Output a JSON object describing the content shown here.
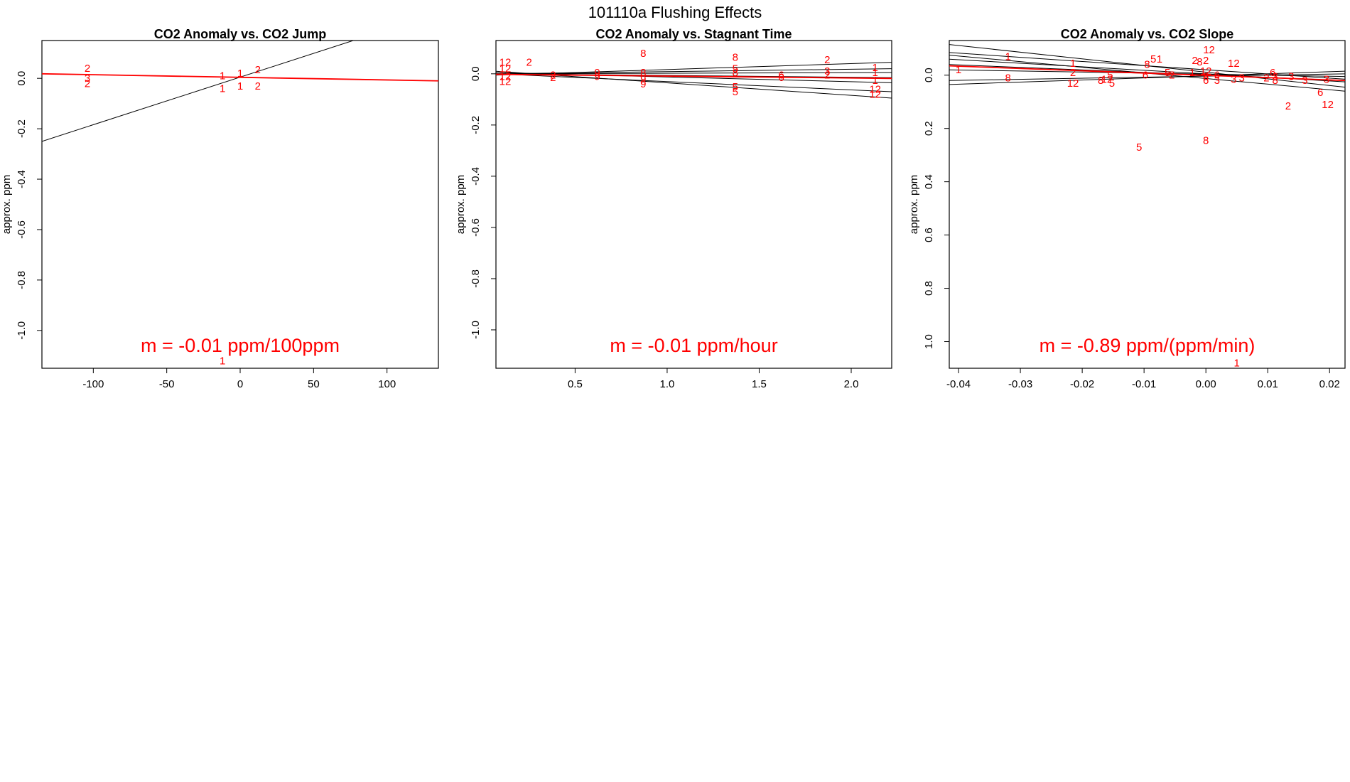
{
  "figure": {
    "title": "101110a   Flushing Effects",
    "colors": {
      "points": "#ff0000",
      "fit_line": "#ff0000",
      "group_lines": "#000000",
      "frame": "#000000"
    }
  },
  "chart_data": [
    {
      "type": "scatter",
      "title": "CO2 Anomaly vs. CO2 Jump",
      "xlabel": "",
      "ylabel": "approx. ppm",
      "xlim": [
        -135,
        135
      ],
      "ylim": [
        -1.15,
        0.15
      ],
      "xticks": [
        -100,
        -50,
        0,
        50,
        100
      ],
      "yticks": [
        0.0,
        -0.2,
        -0.4,
        -0.6,
        -0.8,
        -1.0
      ],
      "annotation": "m = -0.01 ppm/100ppm",
      "points": [
        {
          "x": -104,
          "y": 0.04,
          "label": "2"
        },
        {
          "x": -104,
          "y": 0.0,
          "label": "3"
        },
        {
          "x": -104,
          "y": -0.02,
          "label": "2"
        },
        {
          "x": -12,
          "y": 0.01,
          "label": "1"
        },
        {
          "x": -12,
          "y": -0.04,
          "label": "1"
        },
        {
          "x": 0,
          "y": 0.02,
          "label": "1"
        },
        {
          "x": 0,
          "y": -0.03,
          "label": "1"
        },
        {
          "x": 12,
          "y": 0.035,
          "label": "2"
        },
        {
          "x": 12,
          "y": -0.03,
          "label": "2"
        },
        {
          "x": -12,
          "y": -1.12,
          "label": "1"
        }
      ],
      "group_lines": [
        {
          "x": [
            -135,
            77
          ],
          "y": [
            -0.25,
            0.15
          ]
        }
      ],
      "fit_line": {
        "x": [
          -135,
          135
        ],
        "y": [
          0.018,
          -0.01
        ]
      }
    },
    {
      "type": "scatter",
      "title": "CO2 Anomaly vs. Stagnant Time",
      "xlabel": "",
      "ylabel": "approx. ppm",
      "xlim": [
        0.07,
        2.22
      ],
      "ylim": [
        -1.15,
        0.13
      ],
      "xticks": [
        0.5,
        1.0,
        1.5,
        2.0
      ],
      "yticks": [
        0.0,
        -0.2,
        -0.4,
        -0.6,
        -0.8,
        -1.0
      ],
      "annotation": "m = -0.01 ppm/hour",
      "points": [
        {
          "x": 0.12,
          "y": 0.045,
          "label": "12"
        },
        {
          "x": 0.12,
          "y": 0.02,
          "label": "12"
        },
        {
          "x": 0.12,
          "y": -0.01,
          "label": "12"
        },
        {
          "x": 0.12,
          "y": -0.03,
          "label": "12"
        },
        {
          "x": 0.25,
          "y": 0.045,
          "label": "2"
        },
        {
          "x": 0.38,
          "y": -0.005,
          "label": "2"
        },
        {
          "x": 0.38,
          "y": -0.015,
          "label": "2"
        },
        {
          "x": 0.62,
          "y": 0.005,
          "label": "9"
        },
        {
          "x": 0.62,
          "y": -0.01,
          "label": "9"
        },
        {
          "x": 0.87,
          "y": 0.08,
          "label": "8"
        },
        {
          "x": 0.87,
          "y": 0.005,
          "label": "8"
        },
        {
          "x": 0.87,
          "y": -0.02,
          "label": "9"
        },
        {
          "x": 0.87,
          "y": -0.04,
          "label": "9"
        },
        {
          "x": 1.37,
          "y": 0.065,
          "label": "8"
        },
        {
          "x": 1.37,
          "y": 0.02,
          "label": "5"
        },
        {
          "x": 1.37,
          "y": 0.005,
          "label": "8"
        },
        {
          "x": 1.37,
          "y": -0.05,
          "label": "5"
        },
        {
          "x": 1.37,
          "y": -0.07,
          "label": "5"
        },
        {
          "x": 1.62,
          "y": -0.005,
          "label": "6"
        },
        {
          "x": 1.62,
          "y": -0.015,
          "label": "6"
        },
        {
          "x": 1.87,
          "y": 0.055,
          "label": "2"
        },
        {
          "x": 1.87,
          "y": 0.01,
          "label": "3"
        },
        {
          "x": 1.87,
          "y": -0.005,
          "label": "2"
        },
        {
          "x": 2.13,
          "y": 0.025,
          "label": "1"
        },
        {
          "x": 2.13,
          "y": 0.005,
          "label": "1"
        },
        {
          "x": 2.13,
          "y": -0.025,
          "label": "1"
        },
        {
          "x": 2.13,
          "y": -0.06,
          "label": "12"
        },
        {
          "x": 2.13,
          "y": -0.08,
          "label": "12"
        }
      ],
      "group_lines": [
        {
          "x": [
            0.07,
            2.22
          ],
          "y": [
            -0.005,
            0.045
          ]
        },
        {
          "x": [
            0.07,
            2.22
          ],
          "y": [
            0.0,
            0.02
          ]
        },
        {
          "x": [
            0.07,
            2.22
          ],
          "y": [
            0.0,
            0.005
          ]
        },
        {
          "x": [
            0.07,
            2.22
          ],
          "y": [
            0.0,
            -0.015
          ]
        },
        {
          "x": [
            0.07,
            2.22
          ],
          "y": [
            0.005,
            -0.035
          ]
        },
        {
          "x": [
            0.07,
            2.22
          ],
          "y": [
            0.0,
            -0.07
          ]
        },
        {
          "x": [
            0.07,
            2.22
          ],
          "y": [
            0.01,
            -0.095
          ]
        }
      ],
      "fit_line": {
        "x": [
          0.07,
          2.22
        ],
        "y": [
          -0.002,
          -0.018
        ]
      }
    },
    {
      "type": "scatter",
      "title": "CO2 Anomaly vs. CO2 Slope",
      "xlabel": "",
      "ylabel": "approx. ppm",
      "xlim": [
        -0.0415,
        0.0225
      ],
      "ylim": [
        -1.1,
        0.13
      ],
      "xticks": [
        -0.04,
        -0.03,
        -0.02,
        -0.01,
        0.0,
        0.01,
        0.02
      ],
      "ytick_labels": [
        "0.0",
        "0.2",
        "0.4",
        "0.6",
        "0.8",
        "1.0"
      ],
      "yticks": [
        0.0,
        -0.2,
        -0.4,
        -0.6,
        -0.8,
        -1.0
      ],
      "annotation": "m = -0.89 ppm/(ppm/min)",
      "points": [
        {
          "x": -0.04,
          "y": 0.02,
          "label": "1"
        },
        {
          "x": -0.032,
          "y": 0.07,
          "label": "1"
        },
        {
          "x": -0.032,
          "y": -0.01,
          "label": "8"
        },
        {
          "x": -0.0215,
          "y": 0.045,
          "label": "1"
        },
        {
          "x": -0.0215,
          "y": 0.01,
          "label": "2"
        },
        {
          "x": -0.0215,
          "y": -0.03,
          "label": "12"
        },
        {
          "x": -0.017,
          "y": -0.02,
          "label": "8"
        },
        {
          "x": -0.016,
          "y": -0.015,
          "label": "12"
        },
        {
          "x": -0.0155,
          "y": 0.0,
          "label": "5"
        },
        {
          "x": -0.0152,
          "y": -0.03,
          "label": "5"
        },
        {
          "x": -0.0108,
          "y": -0.27,
          "label": "5"
        },
        {
          "x": -0.0095,
          "y": 0.04,
          "label": "8"
        },
        {
          "x": -0.0085,
          "y": 0.06,
          "label": "5"
        },
        {
          "x": -0.0075,
          "y": 0.06,
          "label": "1"
        },
        {
          "x": -0.0098,
          "y": 0.0,
          "label": "6"
        },
        {
          "x": -0.0062,
          "y": 0.01,
          "label": "5"
        },
        {
          "x": -0.0055,
          "y": 0.0,
          "label": "2"
        },
        {
          "x": -0.0022,
          "y": 0.01,
          "label": "1"
        },
        {
          "x": -0.0018,
          "y": 0.055,
          "label": "2"
        },
        {
          "x": -0.001,
          "y": 0.05,
          "label": "8"
        },
        {
          "x": 0.0,
          "y": 0.055,
          "label": "2"
        },
        {
          "x": 0.0005,
          "y": 0.095,
          "label": "12"
        },
        {
          "x": 0.0,
          "y": 0.015,
          "label": "12"
        },
        {
          "x": 0.0,
          "y": -0.005,
          "label": "8"
        },
        {
          "x": 0.0,
          "y": -0.02,
          "label": "6"
        },
        {
          "x": 0.0,
          "y": -0.245,
          "label": "8"
        },
        {
          "x": 0.0018,
          "y": 0.0,
          "label": "6"
        },
        {
          "x": 0.0018,
          "y": -0.02,
          "label": "3"
        },
        {
          "x": 0.0045,
          "y": -0.015,
          "label": "3"
        },
        {
          "x": 0.005,
          "y": -1.08,
          "label": "1"
        },
        {
          "x": 0.0058,
          "y": -0.01,
          "label": "3"
        },
        {
          "x": 0.0045,
          "y": 0.045,
          "label": "12"
        },
        {
          "x": 0.0098,
          "y": -0.01,
          "label": "2"
        },
        {
          "x": 0.0108,
          "y": 0.01,
          "label": "6"
        },
        {
          "x": 0.0112,
          "y": -0.005,
          "label": "3"
        },
        {
          "x": 0.0112,
          "y": -0.02,
          "label": "8"
        },
        {
          "x": 0.0133,
          "y": -0.115,
          "label": "2"
        },
        {
          "x": 0.0138,
          "y": -0.005,
          "label": "3"
        },
        {
          "x": 0.016,
          "y": -0.02,
          "label": "3"
        },
        {
          "x": 0.0185,
          "y": -0.065,
          "label": "6"
        },
        {
          "x": 0.0195,
          "y": -0.015,
          "label": "3"
        },
        {
          "x": 0.0197,
          "y": -0.11,
          "label": "12"
        }
      ],
      "group_lines": [
        {
          "x": [
            -0.0415,
            0.0225
          ],
          "y": [
            0.115,
            -0.045
          ]
        },
        {
          "x": [
            -0.0415,
            0.0225
          ],
          "y": [
            0.085,
            -0.015
          ]
        },
        {
          "x": [
            -0.0415,
            0.0225
          ],
          "y": [
            0.075,
            -0.06
          ]
        },
        {
          "x": [
            -0.0415,
            0.0225
          ],
          "y": [
            0.06,
            -0.025
          ]
        },
        {
          "x": [
            -0.0415,
            0.0225
          ],
          "y": [
            0.04,
            -0.02
          ]
        },
        {
          "x": [
            -0.0415,
            0.0225
          ],
          "y": [
            0.02,
            -0.005
          ]
        },
        {
          "x": [
            -0.0415,
            0.0225
          ],
          "y": [
            -0.035,
            0.015
          ]
        },
        {
          "x": [
            -0.0415,
            0.0225
          ],
          "y": [
            -0.02,
            0.005
          ]
        }
      ],
      "fit_line": {
        "x": [
          -0.0415,
          0.0225
        ],
        "y": [
          0.035,
          -0.02
        ]
      }
    }
  ]
}
